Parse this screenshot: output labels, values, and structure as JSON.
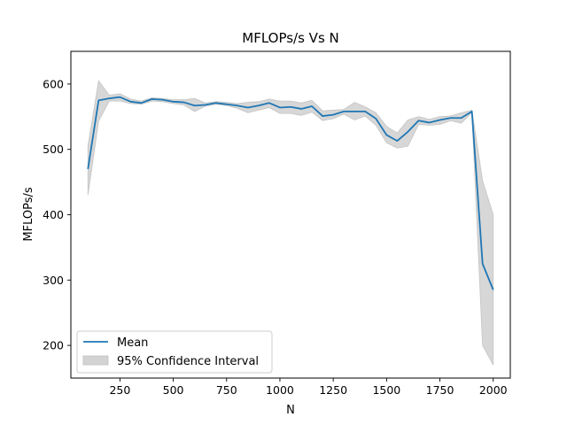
{
  "chart_data": {
    "type": "line",
    "title": "MFLOPs/s Vs N",
    "xlabel": "N",
    "ylabel": "MFLOPs/s",
    "xlim": [
      20,
      2080
    ],
    "ylim": [
      150,
      650
    ],
    "xticks": [
      250,
      500,
      750,
      1000,
      1250,
      1500,
      1750,
      2000
    ],
    "yticks": [
      200,
      300,
      400,
      500,
      600
    ],
    "grid": false,
    "legend_position": "lower-left",
    "x": [
      100,
      150,
      200,
      250,
      300,
      350,
      400,
      450,
      500,
      550,
      600,
      650,
      700,
      750,
      800,
      850,
      900,
      950,
      1000,
      1050,
      1100,
      1150,
      1200,
      1250,
      1300,
      1350,
      1400,
      1450,
      1500,
      1550,
      1600,
      1650,
      1700,
      1750,
      1800,
      1850,
      1900,
      1950,
      2000
    ],
    "series": [
      {
        "name": "Mean",
        "color": "#1f77b4",
        "values": [
          470,
          575,
          578,
          580,
          573,
          571,
          577,
          576,
          573,
          572,
          567,
          568,
          571,
          569,
          567,
          564,
          567,
          571,
          564,
          565,
          562,
          566,
          551,
          553,
          558,
          558,
          558,
          547,
          522,
          513,
          527,
          544,
          541,
          545,
          548,
          548,
          558,
          325,
          285
        ]
      },
      {
        "name": "95% Confidence Interval",
        "color": "#d3d3d3",
        "lower": [
          430,
          543,
          574,
          574,
          570,
          569,
          574,
          573,
          570,
          568,
          558,
          566,
          569,
          567,
          563,
          556,
          560,
          564,
          555,
          555,
          552,
          557,
          544,
          547,
          554,
          545,
          551,
          537,
          510,
          502,
          505,
          538,
          537,
          538,
          544,
          540,
          556,
          200,
          170
        ],
        "upper": [
          505,
          605,
          583,
          585,
          577,
          574,
          579,
          578,
          576,
          576,
          578,
          571,
          573,
          572,
          570,
          572,
          573,
          577,
          574,
          574,
          571,
          575,
          559,
          560,
          561,
          572,
          565,
          556,
          535,
          525,
          545,
          550,
          546,
          550,
          551,
          556,
          560,
          452,
          400
        ]
      }
    ]
  }
}
